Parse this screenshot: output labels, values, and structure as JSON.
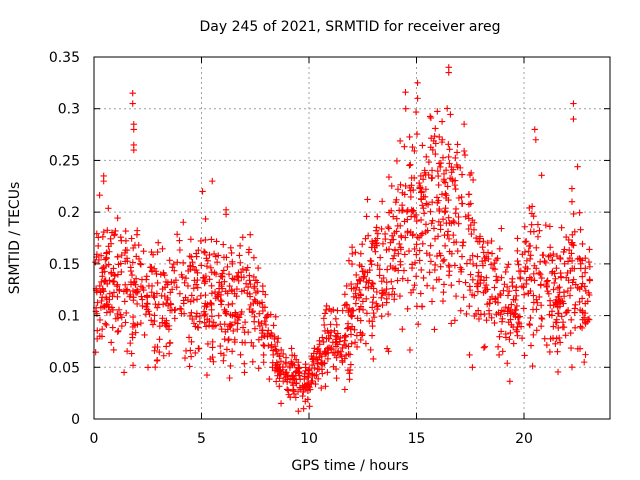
{
  "chart_data": {
    "type": "scatter",
    "title": "Day 245 of 2021, SRMTID for receiver areg",
    "xlabel": "GPS time / hours",
    "ylabel": "SRMTID / TECUs",
    "xlim": [
      0,
      24
    ],
    "ylim": [
      0,
      0.35
    ],
    "xticks": [
      0,
      5,
      10,
      15,
      20
    ],
    "xtick_labels": [
      "0",
      "5",
      "10",
      "15",
      "20"
    ],
    "yticks": [
      0,
      0.05,
      0.1,
      0.15,
      0.2,
      0.25,
      0.3,
      0.35
    ],
    "ytick_labels": [
      "0",
      "0.05",
      "0.1",
      "0.15",
      "0.2",
      "0.25",
      "0.3",
      "0.35"
    ],
    "grid": true,
    "marker": "plus",
    "color": "#ff0000",
    "trend": {
      "hours": [
        0,
        0.5,
        1,
        1.5,
        2,
        2.5,
        3,
        3.5,
        4,
        4.5,
        5,
        5.5,
        6,
        6.5,
        7,
        7.5,
        8,
        8.5,
        9,
        9.5,
        10,
        10.5,
        11,
        11.5,
        12,
        12.5,
        13,
        13.5,
        14,
        14.5,
        15,
        15.5,
        16,
        16.5,
        17,
        17.5,
        18,
        18.5,
        19,
        19.5,
        20,
        20.5,
        21,
        21.5,
        22,
        22.5,
        23
      ],
      "srmtid": [
        0.13,
        0.14,
        0.13,
        0.12,
        0.13,
        0.12,
        0.11,
        0.12,
        0.13,
        0.12,
        0.12,
        0.125,
        0.12,
        0.11,
        0.12,
        0.11,
        0.08,
        0.06,
        0.04,
        0.04,
        0.035,
        0.06,
        0.08,
        0.07,
        0.1,
        0.13,
        0.14,
        0.14,
        0.18,
        0.19,
        0.2,
        0.21,
        0.2,
        0.21,
        0.19,
        0.17,
        0.14,
        0.13,
        0.11,
        0.1,
        0.14,
        0.14,
        0.13,
        0.11,
        0.13,
        0.14,
        0.12
      ]
    },
    "notable_points": [
      {
        "x": 1.8,
        "y": 0.315
      },
      {
        "x": 1.8,
        "y": 0.305
      },
      {
        "x": 1.85,
        "y": 0.285
      },
      {
        "x": 1.85,
        "y": 0.28
      },
      {
        "x": 1.85,
        "y": 0.265
      },
      {
        "x": 1.85,
        "y": 0.26
      },
      {
        "x": 0.45,
        "y": 0.235
      },
      {
        "x": 0.45,
        "y": 0.23
      },
      {
        "x": 5.05,
        "y": 0.22
      },
      {
        "x": 5.5,
        "y": 0.23
      },
      {
        "x": 8.7,
        "y": 0.015
      },
      {
        "x": 9.75,
        "y": 0.01
      },
      {
        "x": 15.05,
        "y": 0.325
      },
      {
        "x": 15.05,
        "y": 0.31
      },
      {
        "x": 16.5,
        "y": 0.34
      },
      {
        "x": 16.5,
        "y": 0.335
      },
      {
        "x": 14.5,
        "y": 0.3
      },
      {
        "x": 16.2,
        "y": 0.27
      },
      {
        "x": 20.5,
        "y": 0.28
      },
      {
        "x": 20.55,
        "y": 0.27
      },
      {
        "x": 22.3,
        "y": 0.305
      },
      {
        "x": 22.3,
        "y": 0.29
      },
      {
        "x": 17.6,
        "y": 0.05
      },
      {
        "x": 22.8,
        "y": 0.055
      },
      {
        "x": 1.4,
        "y": 0.045
      },
      {
        "x": 7.0,
        "y": 0.045
      }
    ]
  }
}
